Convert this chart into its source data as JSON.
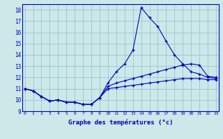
{
  "xlabel": "Graphe des températures (°c)",
  "background_color": "#cce8e8",
  "line_color": "#0000bb",
  "grid_color": "#88bbcc",
  "xlim": [
    0,
    23
  ],
  "ylim": [
    9,
    18.5
  ],
  "yticks": [
    9,
    10,
    11,
    12,
    13,
    14,
    15,
    16,
    17,
    18
  ],
  "xticks": [
    0,
    1,
    2,
    3,
    4,
    5,
    6,
    7,
    8,
    9,
    10,
    11,
    12,
    13,
    14,
    15,
    16,
    17,
    18,
    19,
    20,
    21,
    22,
    23
  ],
  "hours": [
    0,
    1,
    2,
    3,
    4,
    5,
    6,
    7,
    8,
    9,
    10,
    11,
    12,
    13,
    14,
    15,
    16,
    17,
    18,
    19,
    20,
    21,
    22,
    23
  ],
  "temp_max": [
    11.0,
    10.8,
    10.3,
    9.9,
    10.0,
    9.8,
    9.8,
    9.6,
    9.6,
    10.2,
    11.5,
    12.5,
    13.2,
    14.4,
    18.2,
    17.3,
    16.5,
    15.2,
    14.0,
    13.2,
    12.5,
    12.3,
    12.0,
    11.9
  ],
  "temp_mean": [
    11.0,
    10.8,
    10.3,
    9.9,
    10.0,
    9.8,
    9.8,
    9.6,
    9.6,
    10.2,
    11.2,
    11.5,
    11.7,
    11.9,
    12.1,
    12.3,
    12.5,
    12.7,
    12.9,
    13.1,
    13.2,
    13.1,
    12.1,
    12.0
  ],
  "temp_min": [
    11.0,
    10.8,
    10.3,
    9.9,
    10.0,
    9.8,
    9.8,
    9.6,
    9.6,
    10.2,
    11.0,
    11.1,
    11.2,
    11.3,
    11.4,
    11.5,
    11.6,
    11.7,
    11.8,
    11.9,
    11.9,
    11.9,
    11.8,
    11.8
  ]
}
